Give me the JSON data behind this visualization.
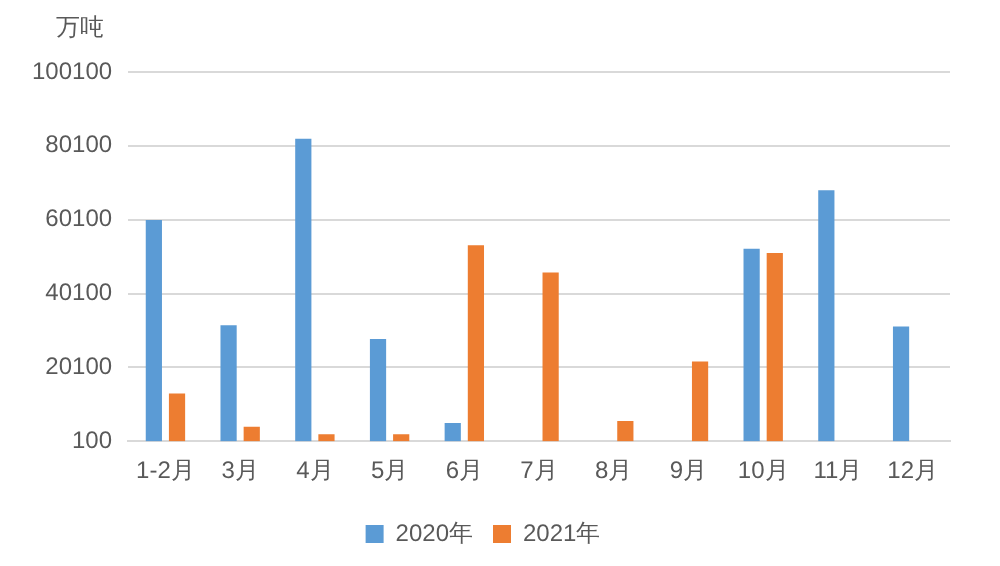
{
  "chart_data": {
    "type": "bar",
    "ylabel": "万吨",
    "categories": [
      "1-2月",
      "3月",
      "4月",
      "5月",
      "6月",
      "7月",
      "8月",
      "9月",
      "10月",
      "11月",
      "12月"
    ],
    "series": [
      {
        "name": "2020年",
        "color": "#5b9bd5",
        "values": [
          60000,
          31500,
          82000,
          27800,
          5000,
          null,
          null,
          null,
          52200,
          68100,
          31200
        ]
      },
      {
        "name": "2021年",
        "color": "#ed7d31",
        "values": [
          13000,
          4000,
          2000,
          2000,
          53200,
          45800,
          5600,
          21700,
          51100,
          null,
          null
        ]
      }
    ],
    "ylim": [
      100,
      100100
    ],
    "yticks": [
      100,
      20100,
      40100,
      60100,
      80100,
      100100
    ],
    "grid": "y",
    "legend": "bottom"
  }
}
